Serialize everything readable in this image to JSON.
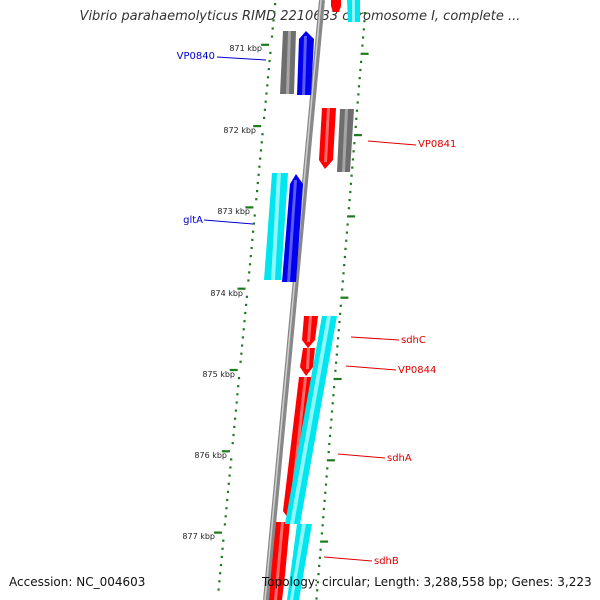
{
  "title": "Vibrio parahaemolyticus RIMD 2210633 chromosome I, complete ...",
  "footer": {
    "accession": "Accession: NC_004603",
    "topology": "Topology: circular; Length: 3,288,558 bp; Genes: 3,223"
  },
  "colors": {
    "axis": "#888888",
    "tick": "#1e7a1e",
    "forward_label": "#0000cc",
    "reverse_label": "#dd0000",
    "red_feature": "#ff0000",
    "blue_feature": "#0000ee",
    "cyan_feature": "#00e5ee",
    "grey_feature": "#6e6e6e"
  },
  "scale_labels": [
    "871 kbp",
    "872 kbp",
    "873 kbp",
    "874 kbp",
    "875 kbp",
    "876 kbp",
    "877 kbp"
  ],
  "features": [
    {
      "name": "VP0840",
      "strand": "forward",
      "color_key": "blue_feature"
    },
    {
      "name": "VP0841",
      "strand": "reverse",
      "color_key": "red_feature"
    },
    {
      "name": "gltA",
      "strand": "forward",
      "color_key": "blue_feature"
    },
    {
      "name": "sdhC",
      "strand": "reverse",
      "color_key": "red_feature"
    },
    {
      "name": "VP0844",
      "strand": "reverse",
      "color_key": "red_feature"
    },
    {
      "name": "sdhA",
      "strand": "reverse",
      "color_key": "red_feature"
    },
    {
      "name": "sdhB",
      "strand": "reverse",
      "color_key": "red_feature"
    }
  ]
}
